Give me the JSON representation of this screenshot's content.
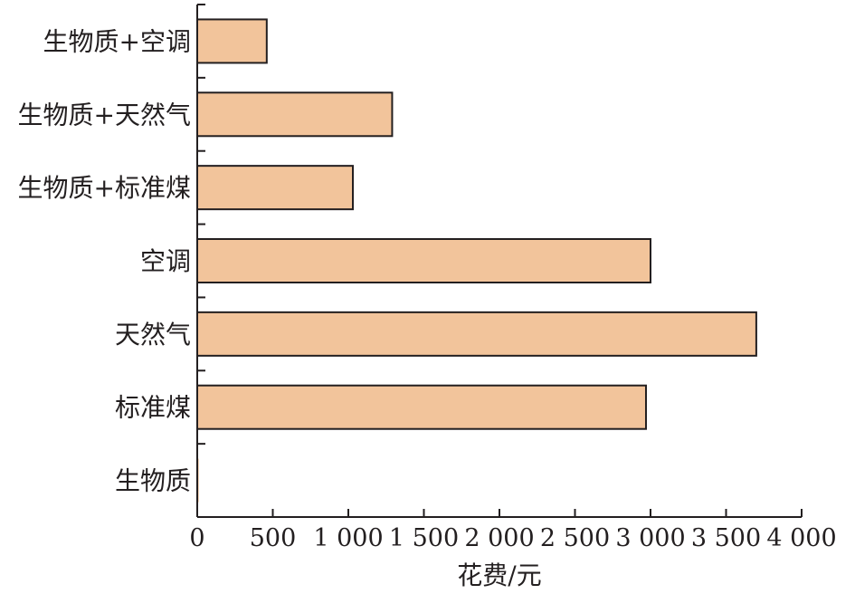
{
  "chart_data": {
    "type": "bar",
    "orientation": "horizontal",
    "categories": [
      "生物质+空调",
      "生物质+天然气",
      "生物质+标准煤",
      "空调",
      "天然气",
      "标准煤",
      "生物质"
    ],
    "values": [
      460,
      1290,
      1030,
      3000,
      3700,
      2970,
      10
    ],
    "xlabel": "花费/元",
    "ylabel": "",
    "xlim": [
      0,
      4000
    ],
    "x_ticks": [
      0,
      500,
      1000,
      1500,
      2000,
      2500,
      3000,
      3500,
      4000
    ],
    "x_tick_labels": [
      "0",
      "500",
      "1 000",
      "1 500",
      "2 000",
      "2 500",
      "3 000",
      "3 500",
      "4 000"
    ],
    "grid": false,
    "legend": "none",
    "bar_color": "#f2c49b",
    "bar_edge_color": "#231f20"
  }
}
